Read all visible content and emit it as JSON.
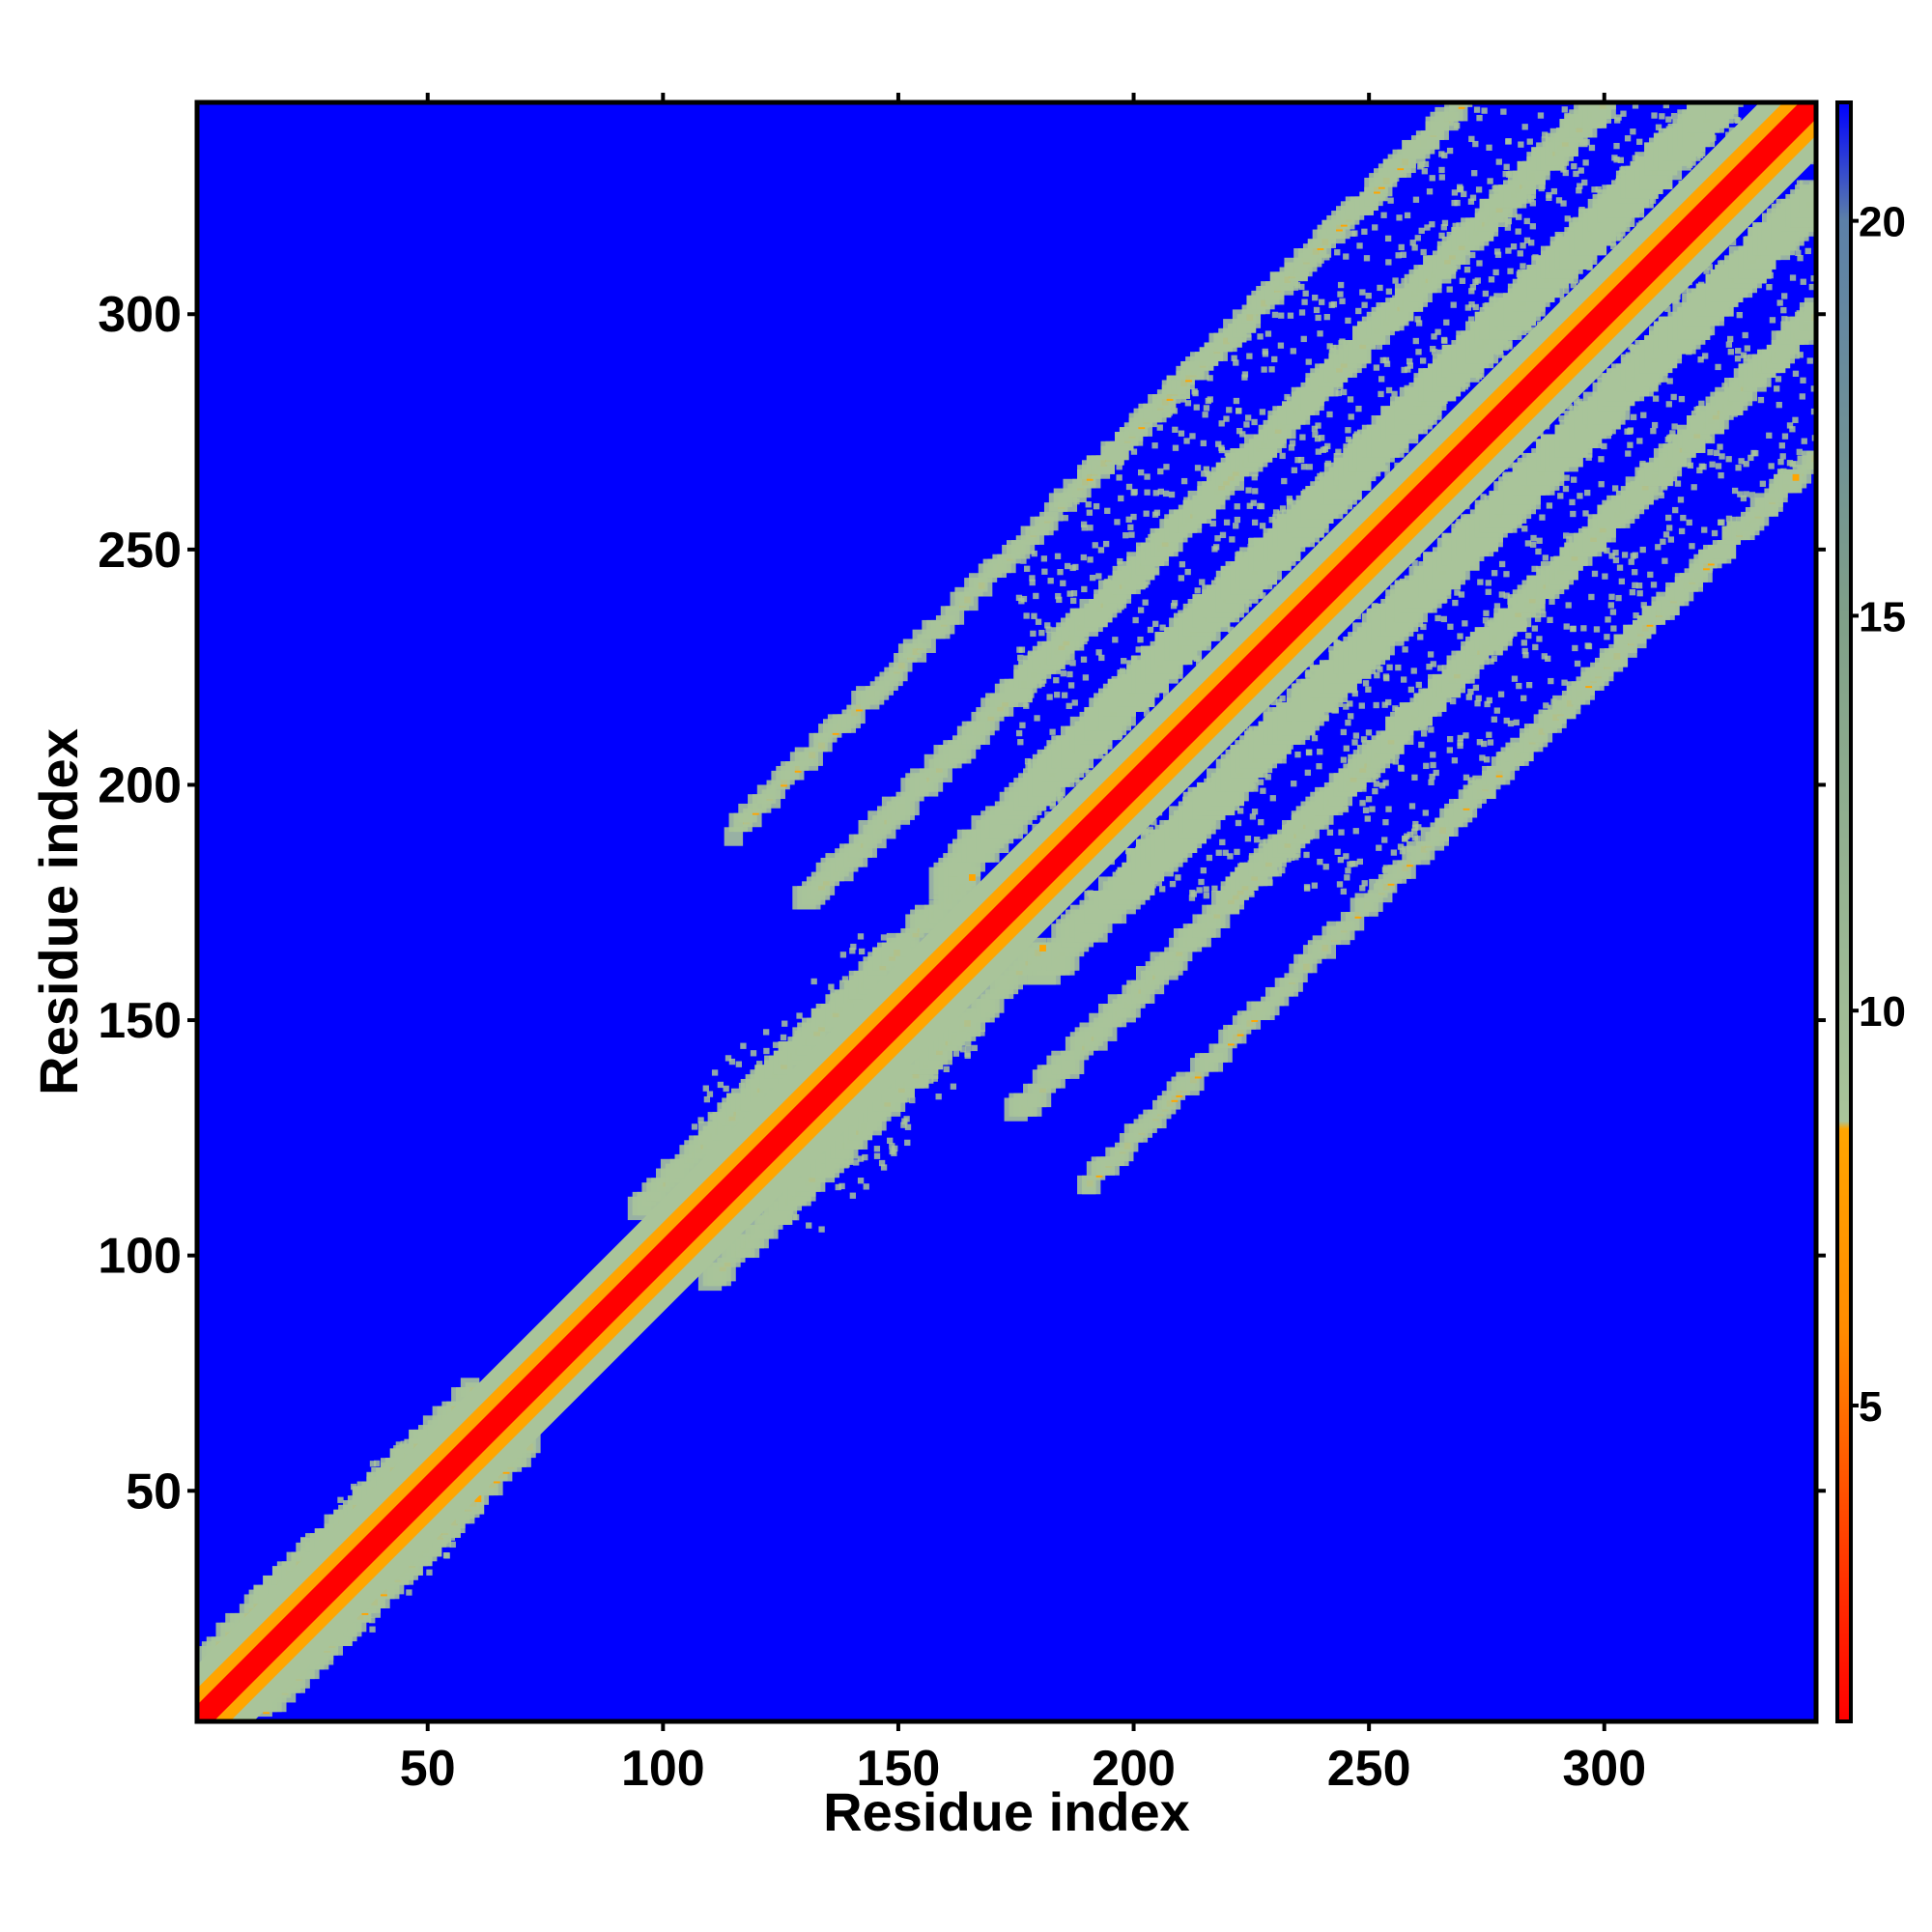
{
  "chart_data": {
    "type": "heatmap",
    "title": "",
    "xlabel": "Residue index",
    "ylabel": "Residue index",
    "xlim": [
      1,
      345
    ],
    "ylim": [
      1,
      345
    ],
    "x_ticks": [
      50,
      100,
      150,
      200,
      250,
      300
    ],
    "y_ticks": [
      50,
      100,
      150,
      200,
      250,
      300
    ],
    "colorbar": {
      "range": [
        1,
        21.5
      ],
      "ticks": [
        5,
        10,
        15,
        20
      ],
      "stops": [
        {
          "value": 1,
          "color": "#ff0000"
        },
        {
          "value": 6,
          "color": "#ff8c00"
        },
        {
          "value": 8.5,
          "color": "#ffa500"
        },
        {
          "value": 8.6,
          "color": "#a9c49a"
        },
        {
          "value": 15,
          "color": "#7f9f88"
        },
        {
          "value": 20,
          "color": "#5c80a8"
        },
        {
          "value": 21.5,
          "color": "#0000ff"
        }
      ]
    },
    "background_color": "#0000ff",
    "diagonal_color": "#ff0000",
    "near_contact_color": "#ffa500",
    "contact_halo_color": "#a9c49a",
    "structure": {
      "diagonal": [
        1,
        345
      ],
      "contact_bands": [
        {
          "i": [
            180,
            345
          ],
          "offset": 20,
          "strength": "strong"
        },
        {
          "i": [
            175,
            345
          ],
          "offset": 45,
          "strength": "medium"
        },
        {
          "i": [
            190,
            340
          ],
          "offset": 75,
          "strength": "weak"
        },
        {
          "i": [
            110,
            165
          ],
          "offset": 15,
          "strength": "medium"
        },
        {
          "i": [
            15,
            60
          ],
          "offset": 12,
          "strength": "weak"
        }
      ],
      "domains": [
        {
          "range": [
            175,
            345
          ]
        },
        {
          "range": [
            105,
            168
          ]
        },
        {
          "range": [
            20,
            60
          ]
        }
      ]
    }
  }
}
